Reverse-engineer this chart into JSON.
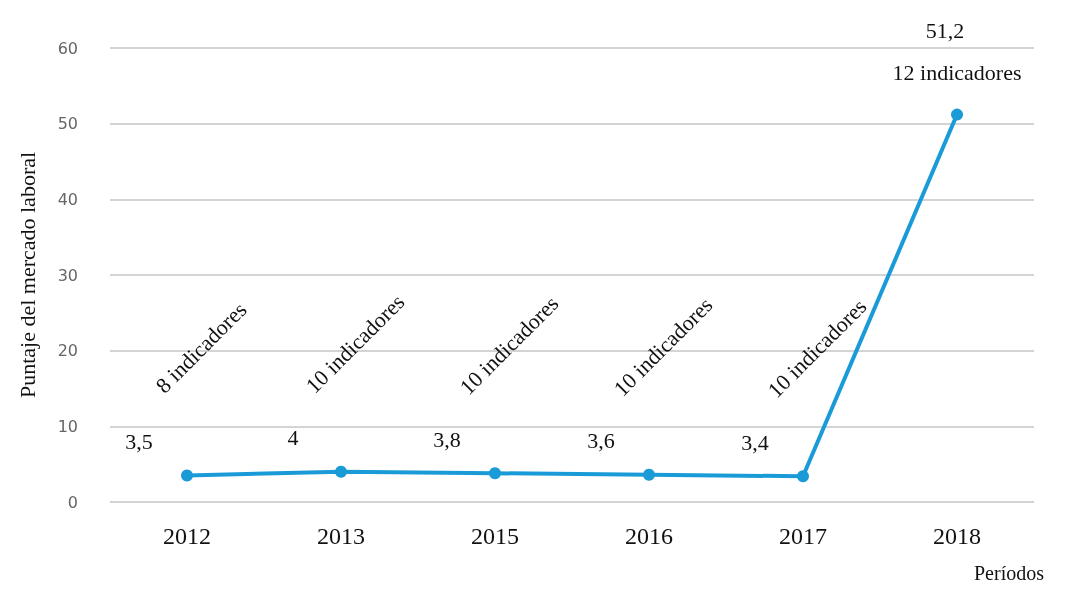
{
  "chart_data": {
    "type": "line",
    "ylabel": "Puntaje del mercado laboral",
    "xlabel": "Períodos",
    "categories": [
      "2012",
      "2013",
      "2015",
      "2016",
      "2017",
      "2018"
    ],
    "values": [
      3.5,
      4,
      3.8,
      3.6,
      3.4,
      51.2
    ],
    "value_labels": [
      "3,5",
      "4",
      "3,8",
      "3,6",
      "3,4",
      "51,2"
    ],
    "color": "#1a9bd7",
    "marker": "circle",
    "line_style": "solid",
    "ylim": [
      0,
      60
    ],
    "yticks": [
      0,
      10,
      20,
      30,
      40,
      50,
      60
    ],
    "grid": "y",
    "annotations": [
      "8 indicadores",
      "10 indicadores",
      "10 indicadores",
      "10 indicadores",
      "10 indicadores",
      "12 indicadores"
    ]
  }
}
